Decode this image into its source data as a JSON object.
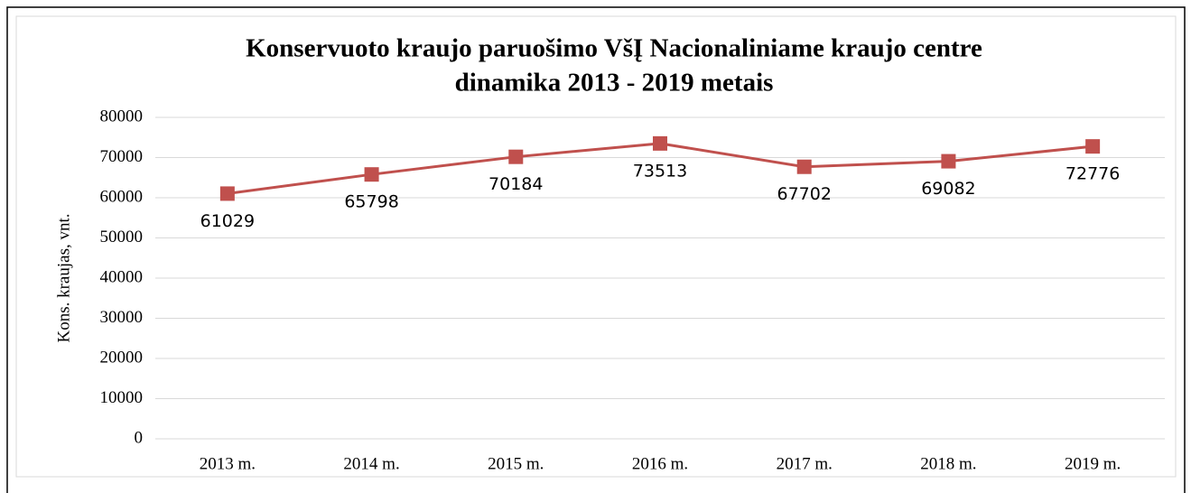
{
  "chart_data": {
    "type": "line",
    "title": [
      "Konservuoto kraujo paruošimo VšĮ Nacionaliniame kraujo centre",
      "dinamika 2013 - 2019 metais"
    ],
    "y_label": "Kons. kraujas, vnt.",
    "categories": [
      "2013 m.",
      "2014 m.",
      "2015 m.",
      "2016 m.",
      "2017 m.",
      "2018 m.",
      "2019 m."
    ],
    "series": [
      {
        "name": "Kons. kraujas, vnt.",
        "color": "#c0504d",
        "values": [
          61029,
          65798,
          70184,
          73513,
          67702,
          69082,
          72776
        ]
      }
    ],
    "ylim": [
      0,
      80000
    ],
    "yticks": [
      0,
      10000,
      20000,
      30000,
      40000,
      50000,
      60000,
      70000,
      80000
    ],
    "grid": true,
    "legend": false
  }
}
